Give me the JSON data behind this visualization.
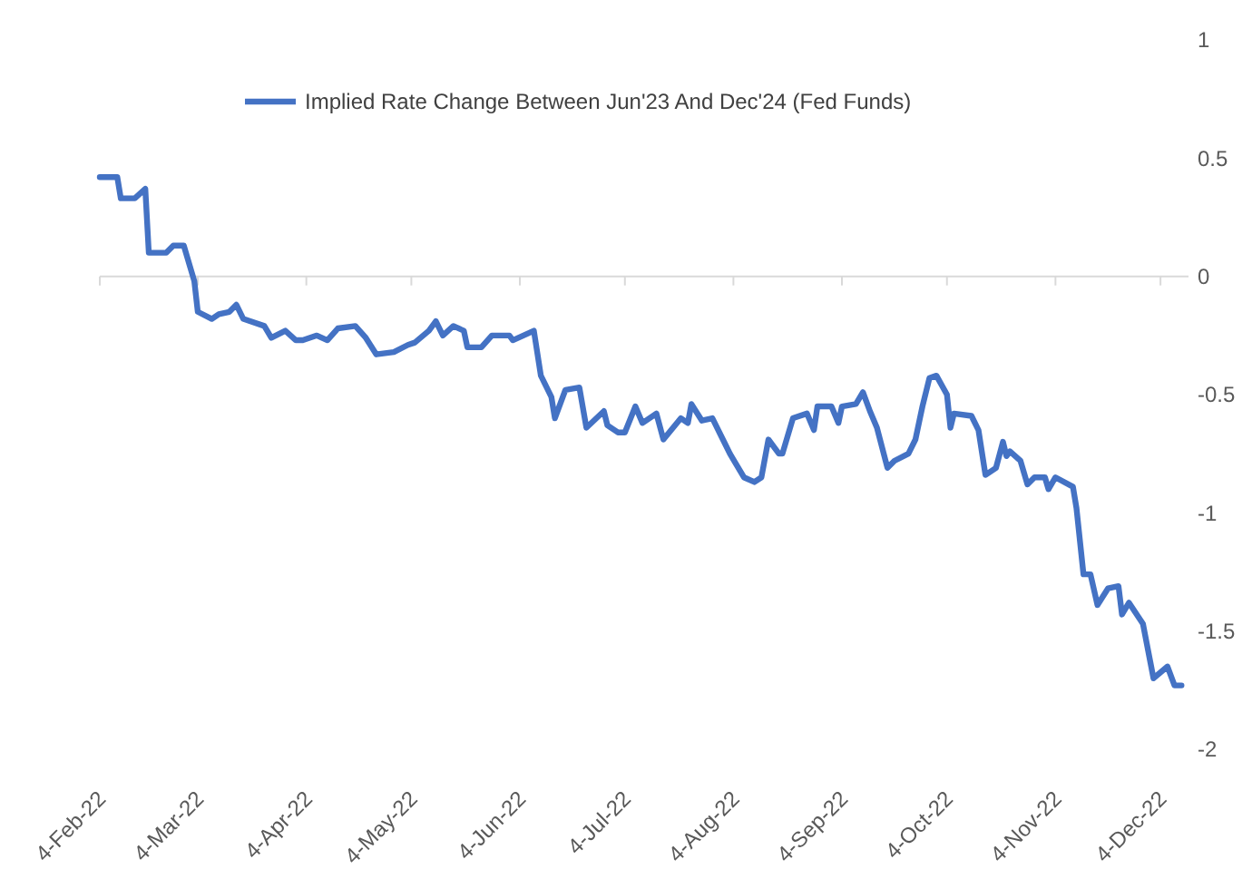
{
  "chart_data": {
    "type": "line",
    "legend": "top",
    "grid": false,
    "marker": "none",
    "line_style": "solid",
    "x": [
      "2022-02-04",
      "2022-02-09",
      "2022-02-10",
      "2022-02-14",
      "2022-02-17",
      "2022-02-18",
      "2022-02-23",
      "2022-02-25",
      "2022-02-28",
      "2022-03-02",
      "2022-03-03",
      "2022-03-04",
      "2022-03-08",
      "2022-03-10",
      "2022-03-13",
      "2022-03-15",
      "2022-03-17",
      "2022-03-23",
      "2022-03-25",
      "2022-03-29",
      "2022-04-01",
      "2022-04-03",
      "2022-04-07",
      "2022-04-10",
      "2022-04-13",
      "2022-04-18",
      "2022-04-21",
      "2022-04-24",
      "2022-04-29",
      "2022-05-03",
      "2022-05-05",
      "2022-05-09",
      "2022-05-11",
      "2022-05-13",
      "2022-05-16",
      "2022-05-19",
      "2022-05-20",
      "2022-05-24",
      "2022-05-27",
      "2022-06-01",
      "2022-06-02",
      "2022-06-08",
      "2022-06-10",
      "2022-06-13",
      "2022-06-14",
      "2022-06-17",
      "2022-06-21",
      "2022-06-23",
      "2022-06-28",
      "2022-06-29",
      "2022-07-02",
      "2022-07-04",
      "2022-07-07",
      "2022-07-09",
      "2022-07-13",
      "2022-07-15",
      "2022-07-20",
      "2022-07-22",
      "2022-07-23",
      "2022-07-26",
      "2022-07-29",
      "2022-08-01",
      "2022-08-03",
      "2022-08-07",
      "2022-08-10",
      "2022-08-12",
      "2022-08-14",
      "2022-08-17",
      "2022-08-18",
      "2022-08-21",
      "2022-08-25",
      "2022-08-27",
      "2022-08-28",
      "2022-09-01",
      "2022-09-03",
      "2022-09-04",
      "2022-09-08",
      "2022-09-10",
      "2022-09-12",
      "2022-09-14",
      "2022-09-17",
      "2022-09-19",
      "2022-09-23",
      "2022-09-25",
      "2022-09-27",
      "2022-09-29",
      "2022-10-01",
      "2022-10-04",
      "2022-10-05",
      "2022-10-06",
      "2022-10-11",
      "2022-10-13",
      "2022-10-15",
      "2022-10-18",
      "2022-10-20",
      "2022-10-21",
      "2022-10-22",
      "2022-10-25",
      "2022-10-27",
      "2022-10-29",
      "2022-11-01",
      "2022-11-02",
      "2022-11-04",
      "2022-11-09",
      "2022-11-10",
      "2022-11-12",
      "2022-11-14",
      "2022-11-16",
      "2022-11-19",
      "2022-11-22",
      "2022-11-23",
      "2022-11-25",
      "2022-11-29",
      "2022-12-02",
      "2022-12-06",
      "2022-12-08",
      "2022-12-10"
    ],
    "series": [
      {
        "name": "Implied Rate Change Between Jun'23 And Dec'24 (Fed Funds)",
        "color": "#4472c4",
        "values": [
          0.42,
          0.42,
          0.33,
          0.33,
          0.37,
          0.1,
          0.1,
          0.13,
          0.13,
          0.03,
          -0.02,
          -0.15,
          -0.18,
          -0.16,
          -0.15,
          -0.12,
          -0.18,
          -0.21,
          -0.26,
          -0.23,
          -0.27,
          -0.27,
          -0.25,
          -0.27,
          -0.22,
          -0.21,
          -0.26,
          -0.33,
          -0.32,
          -0.29,
          -0.28,
          -0.23,
          -0.19,
          -0.25,
          -0.21,
          -0.23,
          -0.3,
          -0.3,
          -0.25,
          -0.25,
          -0.27,
          -0.23,
          -0.42,
          -0.51,
          -0.6,
          -0.48,
          -0.47,
          -0.64,
          -0.57,
          -0.63,
          -0.66,
          -0.66,
          -0.55,
          -0.62,
          -0.58,
          -0.69,
          -0.6,
          -0.62,
          -0.54,
          -0.61,
          -0.6,
          -0.69,
          -0.75,
          -0.85,
          -0.87,
          -0.85,
          -0.69,
          -0.75,
          -0.75,
          -0.6,
          -0.58,
          -0.65,
          -0.55,
          -0.55,
          -0.62,
          -0.55,
          -0.54,
          -0.49,
          -0.57,
          -0.64,
          -0.81,
          -0.78,
          -0.75,
          -0.69,
          -0.55,
          -0.43,
          -0.42,
          -0.5,
          -0.64,
          -0.58,
          -0.59,
          -0.65,
          -0.84,
          -0.81,
          -0.7,
          -0.76,
          -0.74,
          -0.78,
          -0.88,
          -0.85,
          -0.85,
          -0.9,
          -0.85,
          -0.89,
          -0.98,
          -1.26,
          -1.26,
          -1.39,
          -1.32,
          -1.31,
          -1.43,
          -1.38,
          -1.47,
          -1.7,
          -1.65,
          -1.73,
          -1.73
        ]
      }
    ],
    "xlim": [
      "2022-02-04",
      "2022-12-12"
    ],
    "xticks": [
      {
        "value": "2022-02-04",
        "label": "4-Feb-22"
      },
      {
        "value": "2022-03-04",
        "label": "4-Mar-22"
      },
      {
        "value": "2022-04-04",
        "label": "4-Apr-22"
      },
      {
        "value": "2022-05-04",
        "label": "4-May-22"
      },
      {
        "value": "2022-06-04",
        "label": "4-Jun-22"
      },
      {
        "value": "2022-07-04",
        "label": "4-Jul-22"
      },
      {
        "value": "2022-08-04",
        "label": "4-Aug-22"
      },
      {
        "value": "2022-09-04",
        "label": "4-Sep-22"
      },
      {
        "value": "2022-10-04",
        "label": "4-Oct-22"
      },
      {
        "value": "2022-11-04",
        "label": "4-Nov-22"
      },
      {
        "value": "2022-12-04",
        "label": "4-Dec-22"
      }
    ],
    "ref_lines": [
      {
        "axis": "y",
        "value": 0,
        "color": "#d9d9d9"
      }
    ],
    "ylim": [
      -2,
      1
    ],
    "yticks": [
      1,
      0.5,
      0,
      -0.5,
      -1,
      -1.5,
      -2
    ]
  }
}
